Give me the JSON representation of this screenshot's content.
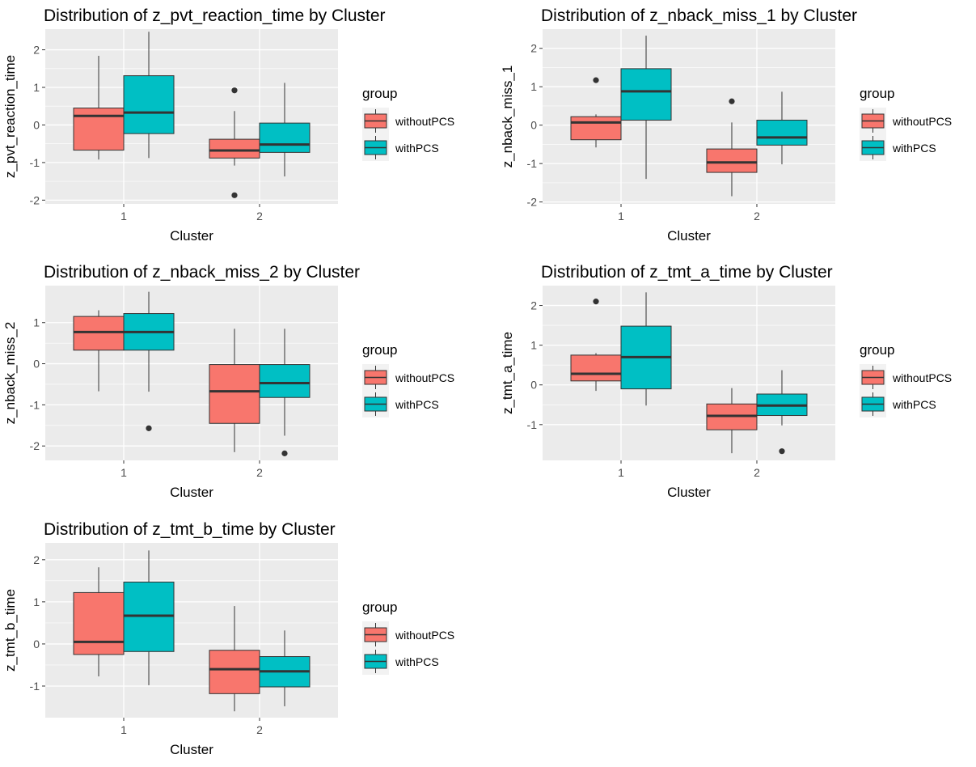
{
  "legend_title": "group",
  "groups": [
    {
      "name": "withoutPCS",
      "color": "#F8766D"
    },
    {
      "name": "withPCS",
      "color": "#00BFC4"
    }
  ],
  "chart_data": [
    {
      "type": "boxplot",
      "title": "Distribution of z_pvt_reaction_time by Cluster",
      "xlabel": "Cluster",
      "ylabel": "z_pvt_reaction_time",
      "categories": [
        "1",
        "2"
      ],
      "ylim": [
        -2.1,
        2.55
      ],
      "yticks": [
        -2,
        -1,
        0,
        1,
        2
      ],
      "grid": true,
      "legend": "right",
      "boxes": [
        {
          "cluster": "1",
          "group": "withoutPCS",
          "min": -0.92,
          "q1": -0.67,
          "median": 0.24,
          "q3": 0.45,
          "max": 1.84,
          "outliers": []
        },
        {
          "cluster": "1",
          "group": "withPCS",
          "min": -0.88,
          "q1": -0.23,
          "median": 0.33,
          "q3": 1.31,
          "max": 2.48,
          "outliers": []
        },
        {
          "cluster": "2",
          "group": "withoutPCS",
          "min": -1.08,
          "q1": -0.88,
          "median": -0.68,
          "q3": -0.38,
          "max": 0.37,
          "outliers": [
            0.92,
            -1.87
          ]
        },
        {
          "cluster": "2",
          "group": "withPCS",
          "min": -1.37,
          "q1": -0.73,
          "median": -0.52,
          "q3": 0.05,
          "max": 1.12,
          "outliers": []
        }
      ]
    },
    {
      "type": "boxplot",
      "title": "Distribution of z_nback_miss_1 by Cluster",
      "xlabel": "Cluster",
      "ylabel": "z_nback_miss_1",
      "categories": [
        "1",
        "2"
      ],
      "ylim": [
        -2.05,
        2.5
      ],
      "yticks": [
        -2,
        -1,
        0,
        1,
        2
      ],
      "grid": true,
      "legend": "right",
      "boxes": [
        {
          "cluster": "1",
          "group": "withoutPCS",
          "min": -0.58,
          "q1": -0.38,
          "median": 0.07,
          "q3": 0.22,
          "max": 0.28,
          "outliers": [
            1.17
          ]
        },
        {
          "cluster": "1",
          "group": "withPCS",
          "min": -1.4,
          "q1": 0.13,
          "median": 0.88,
          "q3": 1.47,
          "max": 2.33,
          "outliers": []
        },
        {
          "cluster": "2",
          "group": "withoutPCS",
          "min": -1.85,
          "q1": -1.23,
          "median": -0.97,
          "q3": -0.62,
          "max": 0.07,
          "outliers": [
            0.62
          ]
        },
        {
          "cluster": "2",
          "group": "withPCS",
          "min": -1.02,
          "q1": -0.52,
          "median": -0.32,
          "q3": 0.13,
          "max": 0.87,
          "outliers": []
        }
      ]
    },
    {
      "type": "boxplot",
      "title": "Distribution of z_nback_miss_2 by Cluster",
      "xlabel": "Cluster",
      "ylabel": "z_nback_miss_2",
      "categories": [
        "1",
        "2"
      ],
      "ylim": [
        -2.35,
        1.9
      ],
      "yticks": [
        -2,
        -1,
        0,
        1
      ],
      "grid": true,
      "legend": "right",
      "boxes": [
        {
          "cluster": "1",
          "group": "withoutPCS",
          "min": -0.67,
          "q1": 0.33,
          "median": 0.77,
          "q3": 1.15,
          "max": 1.3,
          "outliers": []
        },
        {
          "cluster": "1",
          "group": "withPCS",
          "min": -0.68,
          "q1": 0.33,
          "median": 0.77,
          "q3": 1.22,
          "max": 1.75,
          "outliers": [
            -1.57
          ]
        },
        {
          "cluster": "2",
          "group": "withoutPCS",
          "min": -2.15,
          "q1": -1.45,
          "median": -0.67,
          "q3": -0.02,
          "max": 0.85,
          "outliers": []
        },
        {
          "cluster": "2",
          "group": "withPCS",
          "min": -1.75,
          "q1": -0.82,
          "median": -0.47,
          "q3": -0.02,
          "max": 0.85,
          "outliers": [
            -2.18
          ]
        }
      ]
    },
    {
      "type": "boxplot",
      "title": "Distribution of z_tmt_a_time by Cluster",
      "xlabel": "Cluster",
      "ylabel": "z_tmt_a_time",
      "categories": [
        "1",
        "2"
      ],
      "ylim": [
        -1.9,
        2.5
      ],
      "yticks": [
        -1,
        0,
        1,
        2
      ],
      "grid": true,
      "legend": "right",
      "boxes": [
        {
          "cluster": "1",
          "group": "withoutPCS",
          "min": -0.15,
          "q1": 0.1,
          "median": 0.28,
          "q3": 0.75,
          "max": 0.8,
          "outliers": [
            2.1
          ]
        },
        {
          "cluster": "1",
          "group": "withPCS",
          "min": -0.52,
          "q1": -0.1,
          "median": 0.7,
          "q3": 1.48,
          "max": 2.33,
          "outliers": []
        },
        {
          "cluster": "2",
          "group": "withoutPCS",
          "min": -1.72,
          "q1": -1.13,
          "median": -0.78,
          "q3": -0.48,
          "max": -0.08,
          "outliers": []
        },
        {
          "cluster": "2",
          "group": "withPCS",
          "min": -1.02,
          "q1": -0.77,
          "median": -0.52,
          "q3": -0.23,
          "max": 0.37,
          "outliers": [
            -1.67
          ]
        }
      ]
    },
    {
      "type": "boxplot",
      "title": "Distribution of z_tmt_b_time by Cluster",
      "xlabel": "Cluster",
      "ylabel": "z_tmt_b_time",
      "categories": [
        "1",
        "2"
      ],
      "ylim": [
        -1.75,
        2.4
      ],
      "yticks": [
        -1,
        0,
        1,
        2
      ],
      "grid": true,
      "legend": "right",
      "boxes": [
        {
          "cluster": "1",
          "group": "withoutPCS",
          "min": -0.77,
          "q1": -0.25,
          "median": 0.05,
          "q3": 1.22,
          "max": 1.82,
          "outliers": []
        },
        {
          "cluster": "1",
          "group": "withPCS",
          "min": -0.98,
          "q1": -0.18,
          "median": 0.67,
          "q3": 1.47,
          "max": 2.22,
          "outliers": []
        },
        {
          "cluster": "2",
          "group": "withoutPCS",
          "min": -1.6,
          "q1": -1.18,
          "median": -0.6,
          "q3": -0.15,
          "max": 0.9,
          "outliers": []
        },
        {
          "cluster": "2",
          "group": "withPCS",
          "min": -1.48,
          "q1": -1.02,
          "median": -0.65,
          "q3": -0.3,
          "max": 0.32,
          "outliers": []
        }
      ]
    }
  ]
}
